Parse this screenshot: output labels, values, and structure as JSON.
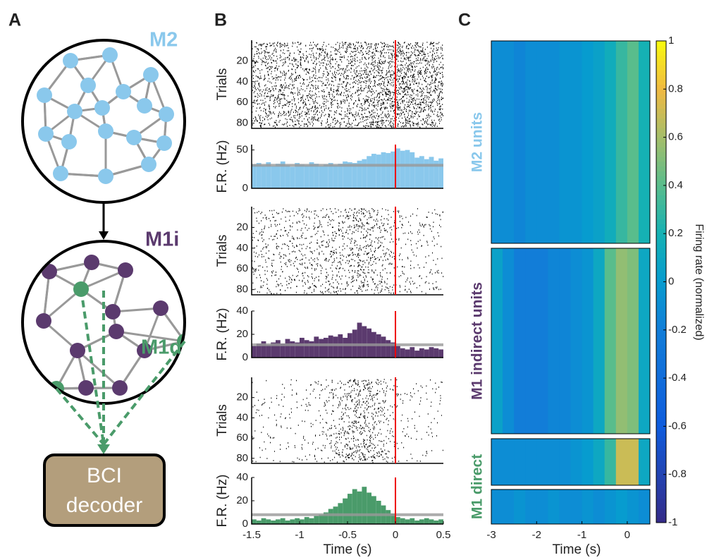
{
  "panel_labels": [
    "A",
    "B",
    "C"
  ],
  "diagram": {
    "top_label": "M2",
    "middle_label": "M1i",
    "direct_label": "M1d",
    "decoder": [
      "BCI",
      "decoder"
    ]
  },
  "chart_data": [
    {
      "type": "histogram",
      "ylabel": "F.R. (Hz)",
      "raster_ylabel": "Trials",
      "color": "#8ac8ec",
      "baseline": 30,
      "event_line": 0,
      "xlim": [
        -1.5,
        0.5
      ],
      "ylim": [
        0,
        57
      ],
      "yticks": [
        0,
        50
      ],
      "raster_ylim": [
        0,
        85
      ],
      "raster_yticks": [
        20,
        40,
        60,
        80
      ],
      "bins": [
        -1.5,
        -1.45,
        -1.4,
        -1.35,
        -1.3,
        -1.25,
        -1.2,
        -1.15,
        -1.1,
        -1.05,
        -1,
        -0.95,
        -0.9,
        -0.85,
        -0.8,
        -0.75,
        -0.7,
        -0.65,
        -0.6,
        -0.55,
        -0.5,
        -0.45,
        -0.4,
        -0.35,
        -0.3,
        -0.25,
        -0.2,
        -0.15,
        -0.1,
        -0.05,
        0,
        0.05,
        0.1,
        0.15,
        0.2,
        0.25,
        0.3,
        0.35,
        0.4,
        0.45,
        0.5
      ],
      "values": [
        31,
        33,
        30,
        34,
        29,
        32,
        35,
        30,
        28,
        33,
        31,
        30,
        34,
        32,
        29,
        31,
        33,
        30,
        32,
        35,
        34,
        33,
        36,
        38,
        42,
        45,
        44,
        47,
        46,
        48,
        52,
        49,
        50,
        47,
        40,
        42,
        38,
        41,
        36,
        39
      ]
    },
    {
      "type": "histogram",
      "ylabel": "F.R. (Hz)",
      "raster_ylabel": "Trials",
      "color": "#5b3a6e",
      "baseline": 11,
      "event_line": 0,
      "xlim": [
        -1.5,
        0.5
      ],
      "ylim": [
        0,
        40
      ],
      "yticks": [
        0,
        20,
        40
      ],
      "raster_ylim": [
        0,
        85
      ],
      "raster_yticks": [
        20,
        40,
        60,
        80
      ],
      "bins": [
        -1.5,
        -1.45,
        -1.4,
        -1.35,
        -1.3,
        -1.25,
        -1.2,
        -1.15,
        -1.1,
        -1.05,
        -1,
        -0.95,
        -0.9,
        -0.85,
        -0.8,
        -0.75,
        -0.7,
        -0.65,
        -0.6,
        -0.55,
        -0.5,
        -0.45,
        -0.4,
        -0.35,
        -0.3,
        -0.25,
        -0.2,
        -0.15,
        -0.1,
        -0.05,
        0,
        0.05,
        0.1,
        0.15,
        0.2,
        0.25,
        0.3,
        0.35,
        0.4,
        0.45,
        0.5
      ],
      "values": [
        10,
        12,
        14,
        11,
        13,
        15,
        12,
        16,
        14,
        13,
        17,
        15,
        14,
        18,
        16,
        17,
        19,
        18,
        20,
        17,
        21,
        24,
        30,
        27,
        25,
        22,
        20,
        18,
        15,
        13,
        10,
        8,
        7,
        9,
        6,
        8,
        7,
        9,
        8,
        7
      ]
    },
    {
      "type": "histogram",
      "ylabel": "F.R. (Hz)",
      "raster_ylabel": "Trials",
      "color": "#4a9b6a",
      "baseline": 8,
      "event_line": 0,
      "xlim": [
        -1.5,
        0.5
      ],
      "xticks": [
        -1.5,
        -1,
        -0.5,
        0,
        0.5
      ],
      "xlabel": "Time (s)",
      "ylim": [
        0,
        40
      ],
      "yticks": [
        0,
        20,
        40
      ],
      "raster_ylim": [
        0,
        85
      ],
      "raster_yticks": [
        20,
        40,
        60,
        80
      ],
      "bins": [
        -1.5,
        -1.45,
        -1.4,
        -1.35,
        -1.3,
        -1.25,
        -1.2,
        -1.15,
        -1.1,
        -1.05,
        -1,
        -0.95,
        -0.9,
        -0.85,
        -0.8,
        -0.75,
        -0.7,
        -0.65,
        -0.6,
        -0.55,
        -0.5,
        -0.45,
        -0.4,
        -0.35,
        -0.3,
        -0.25,
        -0.2,
        -0.15,
        -0.1,
        -0.05,
        0,
        0.05,
        0.1,
        0.15,
        0.2,
        0.25,
        0.3,
        0.35,
        0.4,
        0.45,
        0.5
      ],
      "values": [
        4,
        3,
        5,
        4,
        3,
        4,
        5,
        3,
        4,
        5,
        4,
        6,
        5,
        7,
        8,
        10,
        13,
        15,
        18,
        22,
        26,
        30,
        28,
        32,
        27,
        24,
        20,
        16,
        12,
        9,
        6,
        5,
        4,
        5,
        3,
        4,
        5,
        4,
        3,
        4
      ]
    },
    {
      "type": "heatmap",
      "xlim": [
        -3,
        0.5
      ],
      "xticks": [
        -3,
        -2,
        -1,
        0
      ],
      "xlabel": "Time (s)",
      "bins": [
        -3,
        -2.75,
        -2.5,
        -2.25,
        -2,
        -1.75,
        -1.5,
        -1.25,
        -1,
        -0.75,
        -0.5,
        -0.25,
        0,
        0.25,
        0.5
      ],
      "groups": [
        {
          "name": "M2 units",
          "color": "#8ac8ec",
          "values": [
            -0.1,
            -0.1,
            -0.15,
            -0.1,
            -0.1,
            -0.1,
            -0.05,
            -0.05,
            0,
            0.05,
            0.15,
            0.3,
            0.4,
            0.2
          ]
        },
        {
          "name": "M1 indirect units",
          "color": "#5b3a6e",
          "values": [
            0.05,
            -0.1,
            -0.2,
            -0.2,
            -0.2,
            -0.15,
            -0.15,
            -0.1,
            -0.05,
            0.1,
            0.4,
            0.55,
            0.5,
            0.1
          ]
        },
        {
          "name": "M1 direct",
          "color": "#4a9b6a",
          "values": [
            -0.1,
            -0.1,
            -0.1,
            -0.1,
            -0.1,
            -0.1,
            -0.1,
            -0.05,
            0,
            0.1,
            0.3,
            0.7,
            0.7,
            0.1
          ]
        },
        {
          "name": null,
          "values": [
            -0.1,
            -0.1,
            -0.05,
            -0.1,
            -0.1,
            -0.05,
            -0.1,
            -0.1,
            -0.05,
            -0.1,
            -0.05,
            0,
            -0.05,
            -0.1
          ]
        }
      ],
      "colorbar": {
        "label": "Firing rate (normalized)",
        "lim": [
          -1,
          1
        ],
        "ticks": [
          1,
          0.8,
          0.6,
          0.4,
          0.2,
          0,
          -0.2,
          -0.4,
          -0.6,
          -0.8,
          -1
        ]
      }
    }
  ]
}
